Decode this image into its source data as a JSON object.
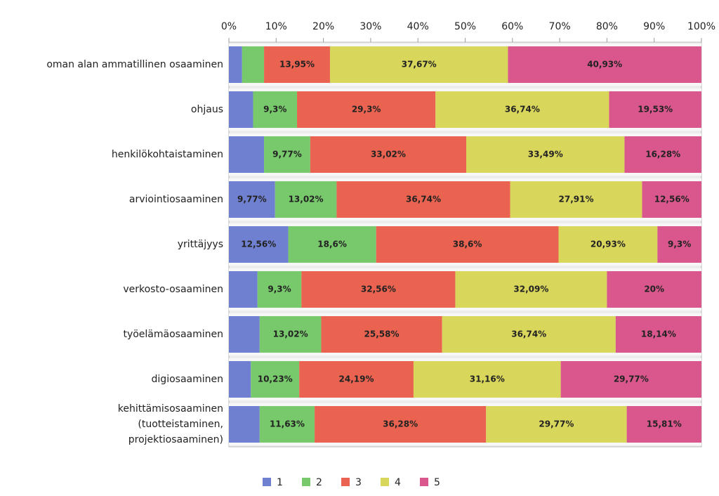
{
  "chart_data": {
    "type": "stacked_bar_horizontal",
    "categories": [
      "oman alan ammatillinen osaaminen",
      "ohjaus",
      "henkilökohtaistaminen",
      "arviointiosaaminen",
      "yrittäjyys",
      "verkosto-osaaminen",
      "työelämäosaaminen",
      "digiosaaminen",
      "kehittämisosaaminen\n(tuotteistaminen,\nprojektiosaaminen)"
    ],
    "series": [
      {
        "name": "1",
        "color": "#7080d0",
        "values": [
          2.79,
          5.12,
          7.44,
          9.77,
          12.56,
          6.05,
          6.51,
          4.65,
          6.51
        ],
        "value_labels": [
          null,
          null,
          null,
          "9,77%",
          "12,56%",
          null,
          null,
          null,
          null
        ]
      },
      {
        "name": "2",
        "color": "#78c86c",
        "values": [
          4.65,
          9.3,
          9.77,
          13.02,
          18.6,
          9.3,
          13.02,
          10.23,
          11.63
        ],
        "value_labels": [
          null,
          "9,3%",
          "9,77%",
          "13,02%",
          "18,6%",
          "9,3%",
          "13,02%",
          "10,23%",
          "11,63%"
        ]
      },
      {
        "name": "3",
        "color": "#ea6350",
        "values": [
          13.95,
          29.3,
          33.02,
          36.74,
          38.6,
          32.56,
          25.58,
          24.19,
          36.28
        ],
        "value_labels": [
          "13,95%",
          "29,3%",
          "33,02%",
          "36,74%",
          "38,6%",
          "32,56%",
          "25,58%",
          "24,19%",
          "36,28%"
        ]
      },
      {
        "name": "4",
        "color": "#d9d65c",
        "values": [
          37.67,
          36.74,
          33.49,
          27.91,
          20.93,
          32.09,
          36.74,
          31.16,
          29.77
        ],
        "value_labels": [
          "37,67%",
          "36,74%",
          "33,49%",
          "27,91%",
          "20,93%",
          "32,09%",
          "36,74%",
          "31,16%",
          "29,77%"
        ]
      },
      {
        "name": "5",
        "color": "#d9578c",
        "values": [
          40.93,
          19.53,
          16.28,
          12.56,
          9.3,
          20,
          18.14,
          29.77,
          15.81
        ],
        "value_labels": [
          "40,93%",
          "19,53%",
          "16,28%",
          "12,56%",
          "9,3%",
          "20%",
          "18,14%",
          "29,77%",
          "15,81%"
        ]
      }
    ],
    "xlim": [
      0,
      100
    ],
    "xticks": [
      {
        "value": 0,
        "label": "0%"
      },
      {
        "value": 10,
        "label": "10%"
      },
      {
        "value": 20,
        "label": "20%"
      },
      {
        "value": 30,
        "label": "30%"
      },
      {
        "value": 40,
        "label": "40%"
      },
      {
        "value": 50,
        "label": "50%"
      },
      {
        "value": 60,
        "label": "60%"
      },
      {
        "value": 70,
        "label": "70%"
      },
      {
        "value": 80,
        "label": "80%"
      },
      {
        "value": 90,
        "label": "90%"
      },
      {
        "value": 100,
        "label": "100%"
      }
    ],
    "legend": "bottom"
  }
}
